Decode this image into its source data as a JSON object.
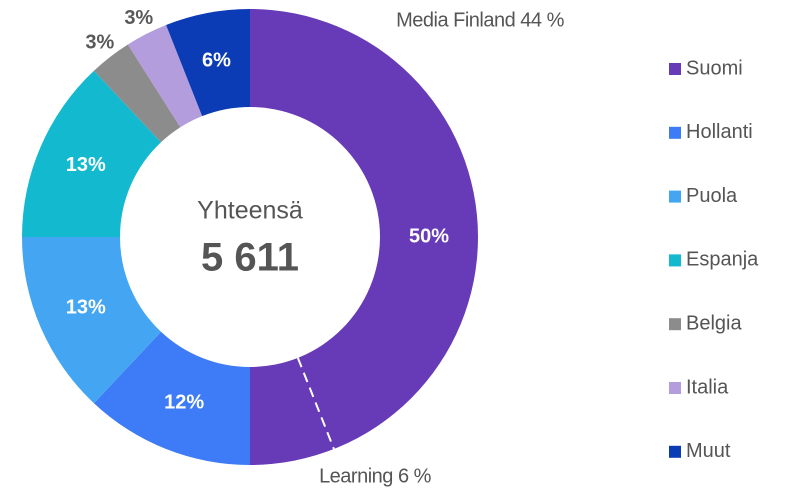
{
  "chart_data": {
    "type": "donut",
    "categories": [
      "Suomi",
      "Hollanti",
      "Puola",
      "Espanja",
      "Belgia",
      "Italia",
      "Muut"
    ],
    "values": [
      50,
      12,
      13,
      13,
      3,
      3,
      6
    ],
    "value_labels": [
      "50%",
      "12%",
      "13%",
      "13%",
      "3%",
      "3%",
      "6%"
    ],
    "colors": [
      "#673ab7",
      "#3d7cf6",
      "#44a6f2",
      "#12b9cf",
      "#8c8c8c",
      "#b49ddd",
      "#0b3cb5"
    ],
    "center_title": "Yhteensä",
    "center_total": "5 611",
    "annotations": [
      {
        "label": "Media Finland 44 %",
        "value": 44
      },
      {
        "label": "Learning 6 %",
        "value": 6
      }
    ],
    "legend": "right"
  }
}
